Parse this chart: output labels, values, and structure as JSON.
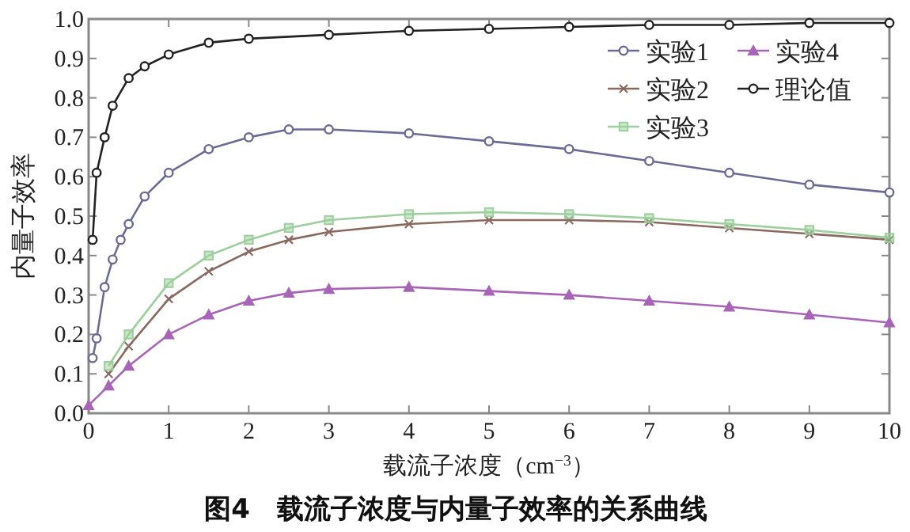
{
  "chart_data": {
    "type": "line",
    "title": "图4　载流子浓度与内量子效率的关系曲线",
    "xlabel": "载流子浓度（cm$^{−3}$）",
    "ylabel": "内量子效率",
    "xlim": [
      0,
      10
    ],
    "ylim": [
      0,
      1
    ],
    "xticks": [
      0,
      1,
      2,
      3,
      4,
      5,
      6,
      7,
      8,
      9,
      10
    ],
    "yticks": [
      {
        "value": 0,
        "label": "0.0"
      },
      0.1,
      0.2,
      0.3,
      0.4,
      0.5,
      0.6,
      0.7,
      0.8,
      0.9,
      {
        "value": 1,
        "label": "1.0"
      }
    ],
    "grid": false,
    "legend": "top right",
    "series": [
      {
        "name": "实验1",
        "color": "#6b6b95",
        "marker": "circle",
        "x": [
          0.05,
          0.1,
          0.2,
          0.3,
          0.4,
          0.5,
          0.7,
          1,
          1.5,
          2,
          2.5,
          3,
          4,
          5,
          6,
          7,
          8,
          9,
          10
        ],
        "values": [
          0.14,
          0.19,
          0.32,
          0.39,
          0.44,
          0.48,
          0.55,
          0.61,
          0.67,
          0.7,
          0.72,
          0.72,
          0.71,
          0.69,
          0.67,
          0.64,
          0.61,
          0.58,
          0.56
        ]
      },
      {
        "name": "实验2",
        "color": "#8a6a60",
        "marker": "cross",
        "x": [
          0.25,
          0.5,
          1,
          1.5,
          2,
          2.5,
          3,
          4,
          5,
          6,
          7,
          8,
          9,
          10
        ],
        "values": [
          0.1,
          0.17,
          0.29,
          0.36,
          0.41,
          0.44,
          0.46,
          0.48,
          0.49,
          0.49,
          0.485,
          0.47,
          0.455,
          0.44
        ]
      },
      {
        "name": "实验3",
        "color": "#9ccf9c",
        "marker": "square",
        "x": [
          0.25,
          0.5,
          1,
          1.5,
          2,
          2.5,
          3,
          4,
          5,
          6,
          7,
          8,
          9,
          10
        ],
        "values": [
          0.12,
          0.2,
          0.33,
          0.4,
          0.44,
          0.47,
          0.49,
          0.505,
          0.51,
          0.505,
          0.495,
          0.48,
          0.465,
          0.445
        ]
      },
      {
        "name": "实验4",
        "color": "#a865b8",
        "marker": "triangle",
        "x": [
          0,
          0.25,
          0.5,
          1,
          1.5,
          2,
          2.5,
          3,
          4,
          5,
          6,
          7,
          8,
          9,
          10
        ],
        "values": [
          0.02,
          0.07,
          0.12,
          0.2,
          0.25,
          0.285,
          0.305,
          0.315,
          0.32,
          0.31,
          0.3,
          0.285,
          0.27,
          0.25,
          0.23
        ]
      },
      {
        "name": "理论值",
        "color": "#222222",
        "marker": "circle",
        "x": [
          0.05,
          0.1,
          0.2,
          0.3,
          0.5,
          0.7,
          1,
          1.5,
          2,
          3,
          4,
          5,
          6,
          7,
          8,
          9,
          10
        ],
        "values": [
          0.44,
          0.61,
          0.7,
          0.78,
          0.85,
          0.88,
          0.91,
          0.94,
          0.95,
          0.96,
          0.97,
          0.975,
          0.98,
          0.985,
          0.985,
          0.99,
          0.99
        ]
      }
    ]
  }
}
